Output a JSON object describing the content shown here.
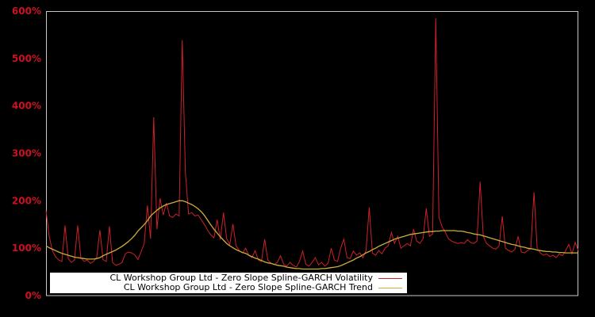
{
  "colors": {
    "background": "#000000",
    "plot_border": "#c8c8c8",
    "tick_label": "#cc1122",
    "legend_background": "#ffffff",
    "legend_text": "#000000"
  },
  "chart_data": {
    "type": "line",
    "title": "",
    "xlabel": "",
    "ylabel": "",
    "ylim": [
      0,
      600
    ],
    "grid": false,
    "x_axis_labels_visible": false,
    "y_tick_labels": [
      "0%",
      "100%",
      "200%",
      "300%",
      "400%",
      "500%",
      "600%"
    ],
    "y_tick_values": [
      0,
      100,
      200,
      300,
      400,
      500,
      600
    ],
    "legend_position": "bottom-left",
    "series": [
      {
        "name": "CL Workshop Group Ltd - Zero Slope Spline-GARCH Volatility",
        "color": "#cc2128",
        "unit": "percent",
        "values": [
          180,
          125,
          95,
          82,
          75,
          72,
          148,
          78,
          70,
          75,
          148,
          80,
          72,
          75,
          68,
          72,
          80,
          138,
          76,
          72,
          146,
          70,
          64,
          66,
          70,
          88,
          92,
          90,
          86,
          76,
          92,
          110,
          190,
          120,
          376,
          140,
          205,
          170,
          195,
          168,
          165,
          172,
          168,
          539,
          260,
          172,
          175,
          168,
          170,
          160,
          150,
          138,
          128,
          122,
          160,
          118,
          175,
          120,
          108,
          151,
          105,
          95,
          90,
          100,
          85,
          80,
          95,
          75,
          72,
          119,
          75,
          68,
          65,
          70,
          84,
          66,
          62,
          70,
          64,
          60,
          72,
          94,
          66,
          62,
          70,
          80,
          65,
          70,
          62,
          68,
          100,
          75,
          72,
          100,
          119,
          80,
          78,
          94,
          85,
          90,
          80,
          95,
          186,
          90,
          85,
          95,
          88,
          100,
          105,
          133,
          110,
          125,
          100,
          105,
          110,
          105,
          140,
          115,
          110,
          120,
          184,
          125,
          130,
          585,
          165,
          145,
          134,
          120,
          115,
          112,
          110,
          112,
          110,
          118,
          112,
          110,
          115,
          240,
          125,
          110,
          105,
          100,
          98,
          105,
          167,
          100,
          95,
          92,
          98,
          125,
          92,
          90,
          95,
          100,
          218,
          100,
          90,
          85,
          88,
          82,
          85,
          80,
          88,
          84,
          95,
          108,
          88,
          112,
          95
        ]
      },
      {
        "name": "CL Workshop Group Ltd - Zero Slope Spline-GARCH Trend",
        "color": "#ccac3d",
        "unit": "percent",
        "values": [
          105,
          101,
          98,
          95,
          92,
          89,
          87,
          85,
          83,
          81,
          80,
          79,
          78,
          77,
          77,
          77,
          78,
          80,
          84,
          87,
          90,
          93,
          96,
          100,
          104,
          109,
          114,
          120,
          127,
          136,
          143,
          150,
          158,
          168,
          174,
          180,
          185,
          189,
          192,
          194,
          196,
          198,
          200,
          200,
          198,
          195,
          192,
          188,
          183,
          177,
          169,
          159,
          149,
          140,
          132,
          124,
          117,
          110,
          105,
          101,
          97,
          94,
          91,
          89,
          85,
          82,
          79,
          77,
          74,
          71,
          69,
          68,
          66,
          64,
          63,
          62,
          60,
          59,
          58,
          57,
          57,
          56,
          56,
          56,
          56,
          56,
          56,
          57,
          57,
          58,
          59,
          60,
          61,
          63,
          66,
          69,
          72,
          75,
          79,
          82,
          86,
          90,
          93,
          97,
          100,
          104,
          107,
          110,
          113,
          116,
          119,
          121,
          123,
          125,
          127,
          129,
          130,
          131,
          132,
          133,
          134,
          135,
          135,
          136,
          136,
          137,
          137,
          137,
          137,
          137,
          136,
          136,
          135,
          133,
          132,
          130,
          129,
          128,
          126,
          124,
          122,
          120,
          118,
          116,
          114,
          112,
          110,
          108,
          107,
          105,
          103,
          102,
          100,
          99,
          98,
          96,
          95,
          94,
          93,
          93,
          92,
          92,
          91,
          91,
          90,
          90,
          90,
          90,
          90
        ]
      }
    ]
  },
  "legend": {
    "row1_label": "CL Workshop Group Ltd - Zero Slope Spline-GARCH Volatility",
    "row2_label": "CL Workshop Group Ltd - Zero Slope Spline-GARCH Trend"
  }
}
